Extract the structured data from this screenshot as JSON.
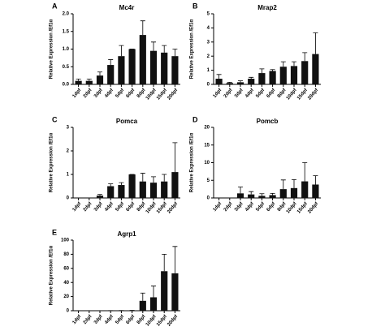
{
  "chart_data": [
    {
      "type": "bar",
      "label": "A",
      "title": "Mc4r",
      "ylabel": "Relative Expression /Ef1α",
      "categories": [
        "1dpf",
        "2dpf",
        "3dpf",
        "4dpf",
        "5dpf",
        "6dpf",
        "8dpf",
        "10dpf",
        "15dpf",
        "20dpf"
      ],
      "values": [
        0.1,
        0.1,
        0.25,
        0.55,
        0.8,
        1.0,
        1.4,
        0.95,
        0.9,
        0.8
      ],
      "errors": [
        0.05,
        0.05,
        0.1,
        0.15,
        0.3,
        0,
        0.4,
        0.25,
        0.2,
        0.2
      ],
      "color": "#111111",
      "ylim": [
        0,
        2
      ],
      "yticks": [
        {
          "value": 0,
          "label": "0.0"
        },
        0.5,
        {
          "value": 1,
          "label": "1.0"
        },
        1.5,
        {
          "value": 2,
          "label": "2.0"
        }
      ]
    },
    {
      "type": "bar",
      "label": "B",
      "title": "Mrap2",
      "ylabel": "Relative Expression /Ef1α",
      "categories": [
        "1dpf",
        "2dpf",
        "3dpf",
        "4dpf",
        "5dpf",
        "6dpf",
        "8dpf",
        "10dpf",
        "15dpf",
        "20dpf"
      ],
      "values": [
        0.4,
        0.1,
        0.15,
        0.4,
        0.8,
        0.95,
        1.25,
        1.3,
        1.65,
        2.15
      ],
      "errors": [
        0.3,
        0.05,
        0.1,
        0.1,
        0.3,
        0.1,
        0.35,
        0.3,
        0.6,
        1.5
      ],
      "color": "#111111",
      "ylim": [
        0,
        5
      ],
      "yticks": [
        0,
        1,
        2,
        3,
        4,
        5
      ]
    },
    {
      "type": "bar",
      "label": "C",
      "title": "Pomca",
      "ylabel": "Relative Expression /Ef1α",
      "categories": [
        "1dpf",
        "2dpf",
        "3dpf",
        "4dpf",
        "5dpf",
        "6dpf",
        "8dpf",
        "10dpf",
        "15dpf",
        "20dpf"
      ],
      "values": [
        0,
        0,
        0.1,
        0.5,
        0.55,
        1.0,
        0.7,
        0.65,
        0.7,
        1.1
      ],
      "errors": [
        0,
        0,
        0.05,
        0.1,
        0.1,
        0,
        0.35,
        0.25,
        0.3,
        1.25
      ],
      "color": "#111111",
      "ylim": [
        0,
        3
      ],
      "yticks": [
        0,
        1,
        2,
        3
      ]
    },
    {
      "type": "bar",
      "label": "D",
      "title": "Pomcb",
      "ylabel": "Relative Expression /Ef1α",
      "categories": [
        "1dpf",
        "2dpf",
        "3dpf",
        "4dpf",
        "5dpf",
        "6dpf",
        "8dpf",
        "10dpf",
        "15dpf",
        "20dpf"
      ],
      "values": [
        0,
        0,
        1.3,
        1.0,
        0.6,
        0.8,
        2.5,
        2.8,
        4.7,
        3.8
      ],
      "errors": [
        0,
        0,
        1.8,
        0.8,
        0.6,
        0.5,
        2.6,
        2.4,
        5.3,
        2.5
      ],
      "color": "#111111",
      "ylim": [
        0,
        20
      ],
      "yticks": [
        0,
        5,
        10,
        15,
        20
      ]
    },
    {
      "type": "bar",
      "label": "E",
      "title": "Agrp1",
      "ylabel": "Relative Expression /Ef1α",
      "categories": [
        "1dpf",
        "2dpf",
        "3dpf",
        "4dpf",
        "5dpf",
        "6dpf",
        "8dpf",
        "10dpf",
        "15dpf",
        "20dpf"
      ],
      "values": [
        0,
        0,
        0,
        0.2,
        0.3,
        0.5,
        14,
        19,
        56,
        53
      ],
      "errors": [
        0,
        0,
        0,
        0,
        0,
        0,
        11,
        16,
        24,
        38
      ],
      "color": "#111111",
      "ylim": [
        0,
        100
      ],
      "yticks": [
        0,
        20,
        40,
        60,
        80,
        100
      ]
    }
  ]
}
